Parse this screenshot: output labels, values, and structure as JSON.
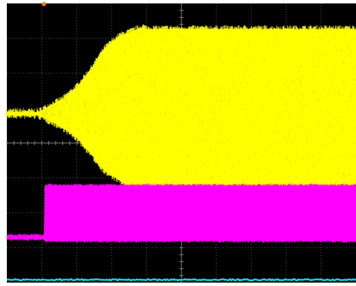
{
  "chart_data": {
    "type": "line",
    "title": "",
    "xlabel": "",
    "ylabel": "",
    "grid": true,
    "divisions": {
      "x": 10,
      "y": 8
    },
    "x_range": [
      0,
      10
    ],
    "y_range": [
      0,
      8
    ],
    "series": [
      {
        "color": "#ffff00",
        "style": "envelope",
        "baseline": 4.84,
        "points": [
          {
            "x": 0.0,
            "lower": 4.8,
            "upper": 4.88
          },
          {
            "x": 0.9,
            "lower": 4.8,
            "upper": 4.88
          },
          {
            "x": 1.2,
            "lower": 4.65,
            "upper": 5.05
          },
          {
            "x": 1.6,
            "lower": 4.45,
            "upper": 5.25
          },
          {
            "x": 2.0,
            "lower": 4.15,
            "upper": 5.6
          },
          {
            "x": 2.4,
            "lower": 3.7,
            "upper": 6.1
          },
          {
            "x": 2.8,
            "lower": 3.2,
            "upper": 6.7
          },
          {
            "x": 3.2,
            "lower": 2.95,
            "upper": 7.05
          },
          {
            "x": 3.6,
            "lower": 2.7,
            "upper": 7.2
          },
          {
            "x": 3.9,
            "lower": 2.65,
            "upper": 7.32
          },
          {
            "x": 4.0,
            "lower": 2.7,
            "upper": 7.26
          },
          {
            "x": 6.0,
            "lower": 2.7,
            "upper": 7.26
          },
          {
            "x": 10.0,
            "lower": 2.7,
            "upper": 7.26
          }
        ]
      },
      {
        "color": "#ff00ff",
        "style": "band",
        "points": [
          {
            "x": 0.0,
            "lower": 1.25,
            "upper": 1.35
          },
          {
            "x": 1.06,
            "lower": 1.25,
            "upper": 1.35
          },
          {
            "x": 1.08,
            "lower": 1.2,
            "upper": 2.78
          },
          {
            "x": 10.0,
            "lower": 1.2,
            "upper": 2.78
          }
        ]
      },
      {
        "color": "#00e5ee",
        "style": "trace",
        "points": [
          {
            "x": 0.0,
            "y": 0.08
          },
          {
            "x": 10.0,
            "y": 0.08
          }
        ]
      }
    ]
  }
}
